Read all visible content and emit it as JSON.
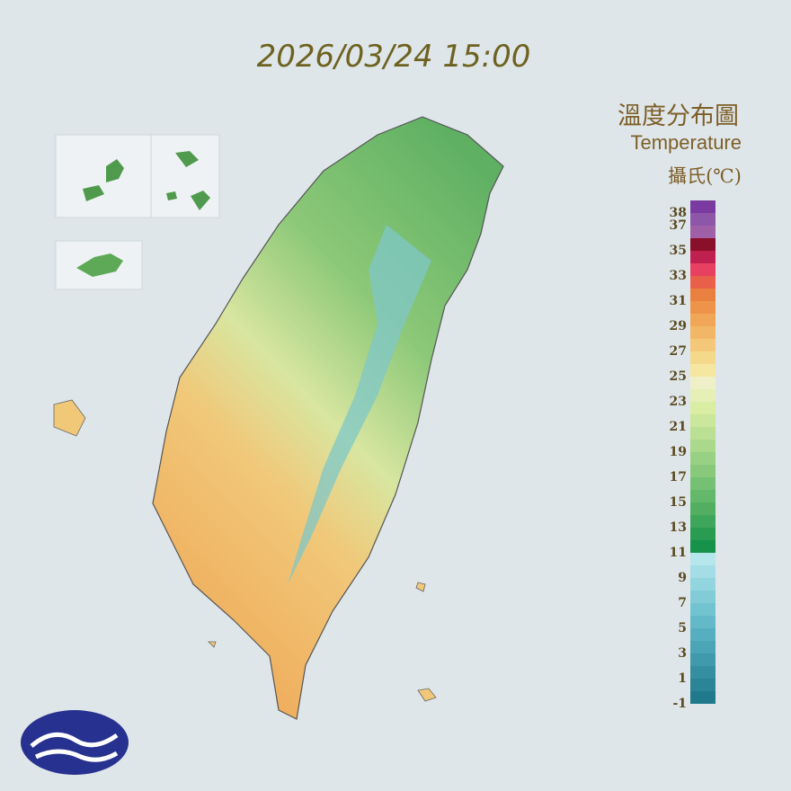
{
  "header": {
    "timestamp": "2026/03/24 15:00"
  },
  "legend": {
    "title": "溫度分布圖",
    "subtitle": "Temperature",
    "unit": "攝氏(℃)",
    "labels": [
      38,
      37,
      35,
      33,
      31,
      29,
      27,
      25,
      23,
      21,
      19,
      17,
      15,
      13,
      11,
      9,
      7,
      5,
      3,
      1,
      -1
    ],
    "colors": [
      "#1f7a8c",
      "#2a8599",
      "#348fa3",
      "#3f9aad",
      "#4aa5b7",
      "#56afc0",
      "#63b9c8",
      "#72c3d0",
      "#82ccd7",
      "#93d5de",
      "#a4dde5",
      "#b5e6ec",
      "#16924a",
      "#2a9c52",
      "#3ea65a",
      "#52af62",
      "#64b86b",
      "#76c074",
      "#88c97c",
      "#99d184",
      "#aad98c",
      "#bbe093",
      "#cbe79b",
      "#d9eda3",
      "#e6f0b6",
      "#f0f0c8",
      "#f5e6a0",
      "#f5d98a",
      "#f4c878",
      "#f2b766",
      "#f0a656",
      "#ee944a",
      "#ea8040",
      "#e8604a",
      "#e84060",
      "#c02050",
      "#8a0f2a",
      "#a060a8",
      "#8e56a8",
      "#7a3aa0"
    ]
  }
}
